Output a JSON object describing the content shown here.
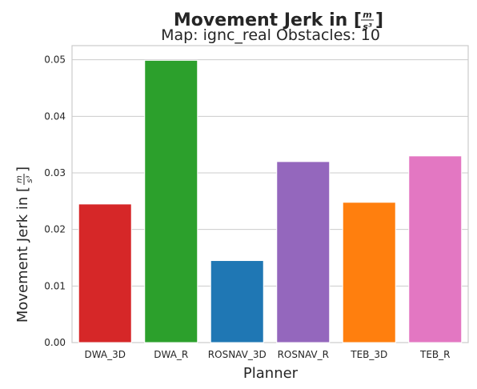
{
  "chart_data": {
    "type": "bar",
    "title": "Movement Jerk in [m/s³]",
    "title_parts": {
      "prefix": "Movement Jerk in [",
      "numerator": "m",
      "denominator": "s³",
      "suffix": "]"
    },
    "subtitle": "Map: ignc_real Obstacles: 10",
    "xlabel": "Planner",
    "ylabel": "Movement Jerk in [m/s³]",
    "ylabel_parts": {
      "prefix": "Movement Jerk in [",
      "numerator": "m",
      "denominator": "s³",
      "suffix": "]"
    },
    "categories": [
      "DWA_3D",
      "DWA_R",
      "ROSNAV_3D",
      "ROSNAV_R",
      "TEB_3D",
      "TEB_R"
    ],
    "values": [
      0.0245,
      0.0499,
      0.0145,
      0.032,
      0.0248,
      0.033
    ],
    "colors": [
      "#d62728",
      "#2ca02c",
      "#1f77b4",
      "#9467bd",
      "#ff7f0e",
      "#e377c2"
    ],
    "ylim": [
      0,
      0.0525
    ],
    "yticks": [
      0.0,
      0.01,
      0.02,
      0.03,
      0.04,
      0.05
    ],
    "ytick_labels": [
      "0.00",
      "0.01",
      "0.02",
      "0.03",
      "0.04",
      "0.05"
    ],
    "grid": "horizontal",
    "legend": "none"
  }
}
